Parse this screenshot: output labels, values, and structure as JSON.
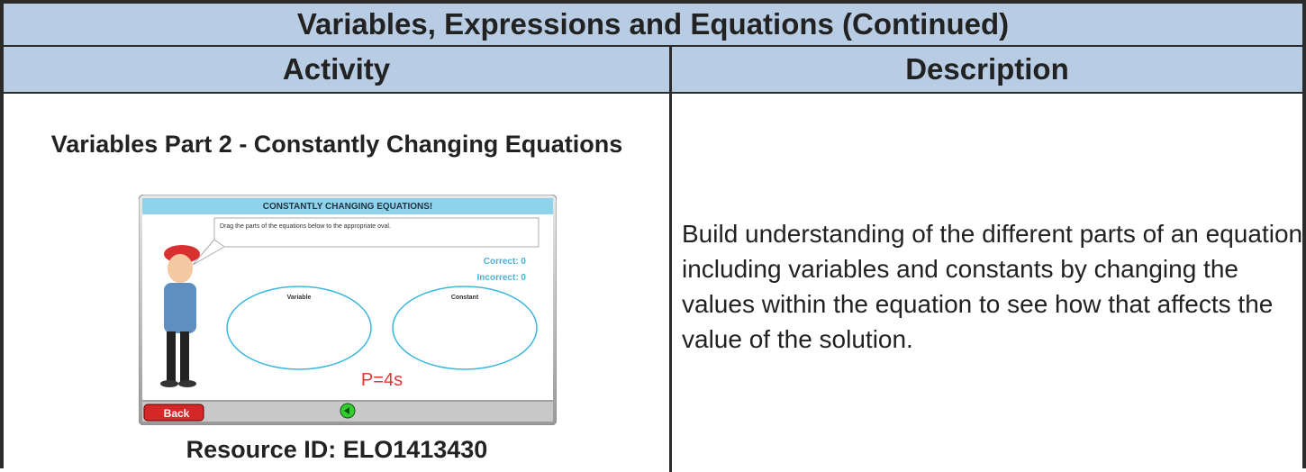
{
  "table": {
    "title": "Variables, Expressions and Equations (Continued)",
    "headers": [
      "Activity",
      "Description"
    ],
    "rows": [
      [
        {
          "title": "Variables Part 2 - Constantly Changing Equations",
          "screenshot": {
            "banner": "CONSTANTLY CHANGING EQUATIONS!",
            "instruction": "Drag the parts of the equations below to the appropriate oval.",
            "correct": "Correct:  0",
            "incorrect": "Incorrect: 0",
            "ovals": [
              "Variable",
              "Constant"
            ],
            "equation": "P=4s",
            "back": "Back"
          },
          "resource": "Resource ID: ELO1413430"
        },
        "Build understanding of the different parts of an equation including variables and constants by changing the values within the equation to see how that affects the value of the solution."
      ]
    ]
  }
}
